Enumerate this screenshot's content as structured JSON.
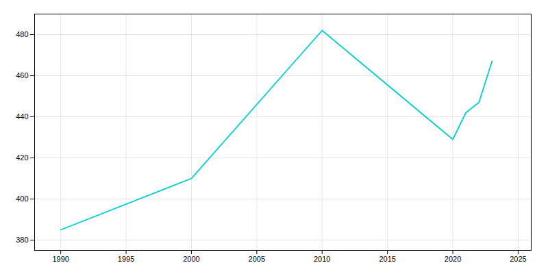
{
  "chart_data": {
    "type": "line",
    "x": [
      1990,
      2000,
      2010,
      2020,
      2021,
      2022,
      2023
    ],
    "values": [
      385,
      410,
      482,
      429,
      442,
      447,
      467
    ],
    "color": "#00CED1",
    "xlim": [
      1988,
      2026
    ],
    "ylim": [
      375,
      490
    ],
    "xticks": [
      1990,
      1995,
      2000,
      2005,
      2010,
      2015,
      2020,
      2025
    ],
    "yticks": [
      380,
      400,
      420,
      440,
      460,
      480
    ],
    "grid": true
  }
}
